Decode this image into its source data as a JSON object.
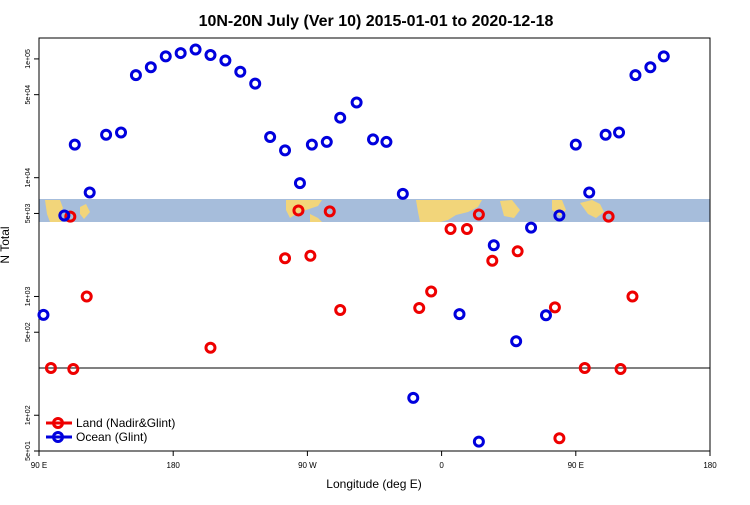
{
  "chart_data": {
    "type": "scatter",
    "title": "10N-20N July (Ver 10)   2015-01-01 to 2020-12-18",
    "xlabel": "Longitude (deg E)",
    "ylabel": "N Total",
    "y_scale": "log",
    "xlim": [
      90,
      540
    ],
    "ylim": [
      50,
      150000
    ],
    "x_ticks": [
      {
        "value": 90,
        "label": "90 E"
      },
      {
        "value": 180,
        "label": "180"
      },
      {
        "value": 270,
        "label": "90 W"
      },
      {
        "value": 360,
        "label": "0"
      },
      {
        "value": 450,
        "label": "90 E"
      },
      {
        "value": 540,
        "label": "180"
      }
    ],
    "y_ticks": [
      {
        "value": 50,
        "label": "5e+01"
      },
      {
        "value": 100,
        "label": "1e+02"
      },
      {
        "value": 500,
        "label": "5e+02"
      },
      {
        "value": 1000,
        "label": "1e+03"
      },
      {
        "value": 5000,
        "label": "5e+03"
      },
      {
        "value": 10000,
        "label": "1e+04"
      },
      {
        "value": 50000,
        "label": "5e+04"
      },
      {
        "value": 100000,
        "label": "1e+05"
      }
    ],
    "reference_line_y": 250,
    "legend_position": "bottom-left",
    "series": [
      {
        "name": "Land (Nadir&Glint)",
        "color": "#ee0000",
        "points": [
          [
            98,
            250
          ],
          [
            111,
            4700
          ],
          [
            113,
            245
          ],
          [
            122,
            1000
          ],
          [
            205,
            370
          ],
          [
            255,
            2100
          ],
          [
            264,
            5300
          ],
          [
            272,
            2200
          ],
          [
            285,
            5200
          ],
          [
            292,
            770
          ],
          [
            345,
            800
          ],
          [
            353,
            1100
          ],
          [
            366,
            3700
          ],
          [
            377,
            3700
          ],
          [
            385,
            4900
          ],
          [
            394,
            2000
          ],
          [
            411,
            2400
          ],
          [
            436,
            810
          ],
          [
            439,
            64
          ],
          [
            456,
            250
          ],
          [
            472,
            4700
          ],
          [
            480,
            245
          ],
          [
            488,
            1000
          ]
        ]
      },
      {
        "name": "Ocean (Glint)",
        "color": "#0000dd",
        "points": [
          [
            93,
            700
          ],
          [
            107,
            4800
          ],
          [
            114,
            19000
          ],
          [
            124,
            7500
          ],
          [
            135,
            23000
          ],
          [
            145,
            24000
          ],
          [
            155,
            73000
          ],
          [
            165,
            85000
          ],
          [
            175,
            105000
          ],
          [
            185,
            112000
          ],
          [
            195,
            120000
          ],
          [
            205,
            108000
          ],
          [
            215,
            97000
          ],
          [
            225,
            78000
          ],
          [
            235,
            62000
          ],
          [
            245,
            22000
          ],
          [
            255,
            17000
          ],
          [
            265,
            9000
          ],
          [
            273,
            19000
          ],
          [
            283,
            20000
          ],
          [
            292,
            32000
          ],
          [
            303,
            43000
          ],
          [
            314,
            21000
          ],
          [
            323,
            20000
          ],
          [
            334,
            7300
          ],
          [
            341,
            140
          ],
          [
            372,
            710
          ],
          [
            385,
            60
          ],
          [
            395,
            2700
          ],
          [
            410,
            420
          ],
          [
            420,
            3800
          ],
          [
            430,
            695
          ],
          [
            439,
            4800
          ],
          [
            450,
            19000
          ],
          [
            459,
            7500
          ],
          [
            470,
            23000
          ],
          [
            479,
            24000
          ],
          [
            490,
            73000
          ],
          [
            500,
            85000
          ],
          [
            509,
            105000
          ]
        ]
      }
    ]
  }
}
